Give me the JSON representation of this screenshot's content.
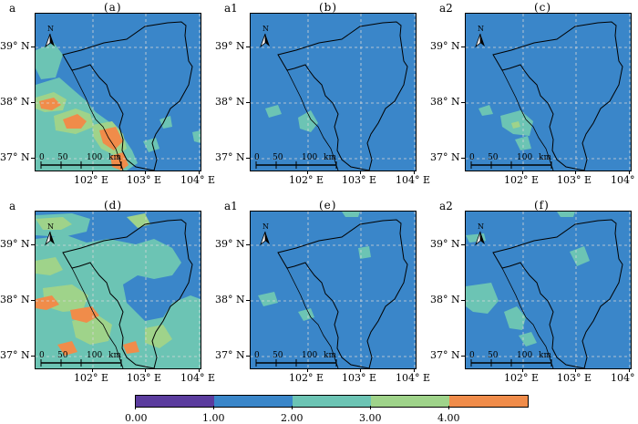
{
  "figure": {
    "panels": [
      {
        "id": "a",
        "label": "a",
        "title": "(a)",
        "blobs": "high1"
      },
      {
        "id": "b",
        "label": "a1",
        "title": "(b)",
        "blobs": "low1"
      },
      {
        "id": "c",
        "label": "a2",
        "title": "(c)",
        "blobs": "low2"
      },
      {
        "id": "d",
        "label": "a",
        "title": "(d)",
        "blobs": "high2"
      },
      {
        "id": "e",
        "label": "a1",
        "title": "(e)",
        "blobs": "low3"
      },
      {
        "id": "f",
        "label": "a2",
        "title": "(f)",
        "blobs": "low4"
      }
    ],
    "y_tick_labels": [
      "39° N",
      "38° N",
      "37° N"
    ],
    "x_tick_labels": [
      "102° E",
      "103° E",
      "104° E"
    ],
    "north_arrow": {
      "letter": "N"
    },
    "scale_bar": {
      "labels": [
        "0",
        "50",
        "100",
        "km"
      ]
    },
    "colorbar": {
      "colors": [
        "#5b3c9e",
        "#3a86c9",
        "#6cc4b4",
        "#9fd38a",
        "#f08c4a"
      ],
      "tick_labels": [
        "0.00",
        "1.00",
        "2.00",
        "3.00",
        "4.00"
      ]
    },
    "colors": {
      "background": "#3a86c9",
      "boundary": "#000000",
      "grid": "#d8d8d8"
    }
  }
}
